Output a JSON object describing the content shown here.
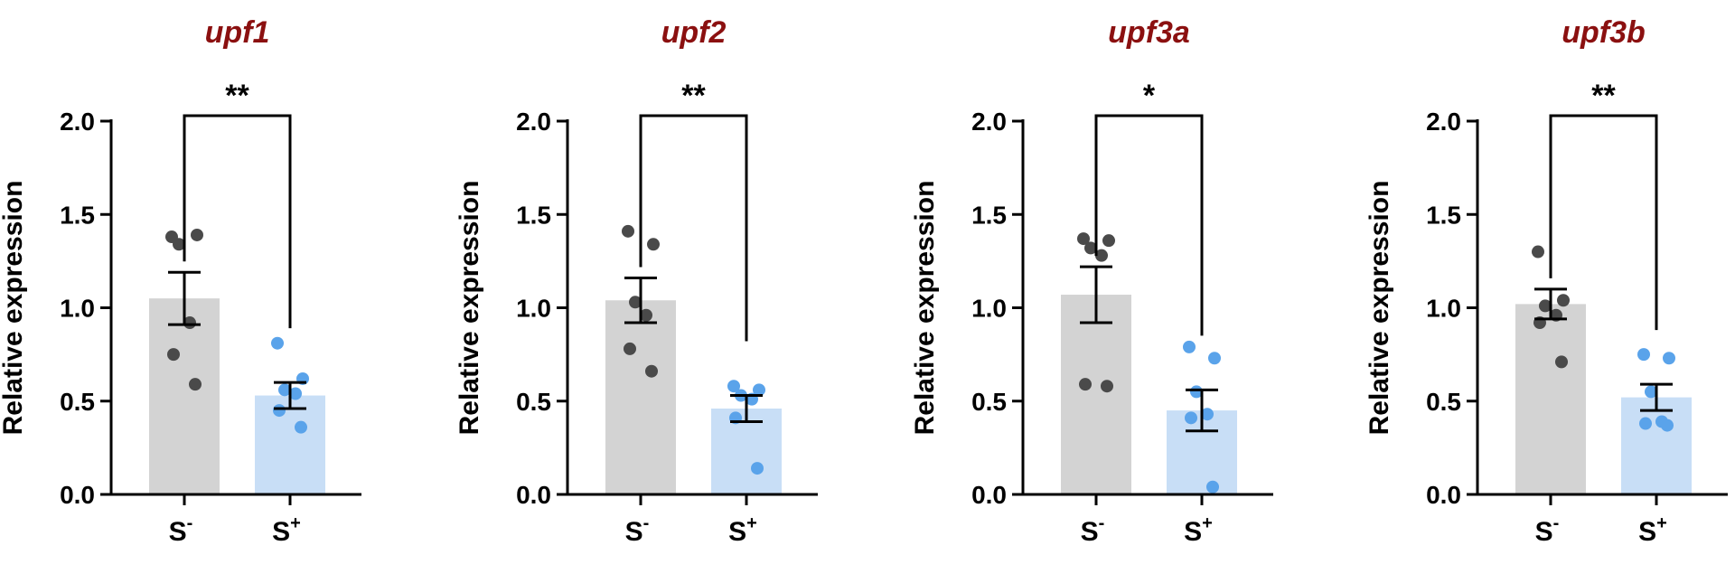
{
  "colors": {
    "title": "#8b1010",
    "bar_minus": "#d3d3d3",
    "bar_plus": "#c8def6",
    "dot_minus": "#4a4a4a",
    "dot_plus": "#5aa3ea",
    "axis": "#000000"
  },
  "chart_data": [
    {
      "type": "bar",
      "title": "upf1",
      "ylabel": "Relative expression",
      "ylim": [
        0,
        2.0
      ],
      "yticks": [
        "0.0",
        "0.5",
        "1.0",
        "1.5",
        "2.0"
      ],
      "categories": [
        {
          "base": "S",
          "sup": "-"
        },
        {
          "base": "S",
          "sup": "+"
        }
      ],
      "values": [
        1.05,
        0.53
      ],
      "errors": [
        0.14,
        0.07
      ],
      "points": [
        [
          1.38,
          1.39,
          1.34,
          0.92,
          0.75,
          0.59
        ],
        [
          0.81,
          0.62,
          0.56,
          0.54,
          0.45,
          0.36
        ]
      ],
      "significance": "**"
    },
    {
      "type": "bar",
      "title": "upf2",
      "ylabel": "Relative expression",
      "ylim": [
        0,
        2.0
      ],
      "yticks": [
        "0.0",
        "0.5",
        "1.0",
        "1.5",
        "2.0"
      ],
      "categories": [
        {
          "base": "S",
          "sup": "-"
        },
        {
          "base": "S",
          "sup": "+"
        }
      ],
      "values": [
        1.04,
        0.46
      ],
      "errors": [
        0.12,
        0.07
      ],
      "points": [
        [
          1.41,
          1.34,
          1.03,
          0.96,
          0.78,
          0.66
        ],
        [
          0.58,
          0.56,
          0.53,
          0.51,
          0.41,
          0.14
        ]
      ],
      "significance": "**"
    },
    {
      "type": "bar",
      "title": "upf3a",
      "ylabel": "Relative expression",
      "ylim": [
        0,
        2.0
      ],
      "yticks": [
        "0.0",
        "0.5",
        "1.0",
        "1.5",
        "2.0"
      ],
      "categories": [
        {
          "base": "S",
          "sup": "-"
        },
        {
          "base": "S",
          "sup": "+"
        }
      ],
      "values": [
        1.07,
        0.45
      ],
      "errors": [
        0.15,
        0.11
      ],
      "points": [
        [
          1.37,
          1.36,
          1.32,
          1.28,
          0.59,
          0.58
        ],
        [
          0.79,
          0.73,
          0.55,
          0.43,
          0.41,
          0.04
        ]
      ],
      "significance": "*"
    },
    {
      "type": "bar",
      "title": "upf3b",
      "ylabel": "Relative expression",
      "ylim": [
        0,
        2.0
      ],
      "yticks": [
        "0.0",
        "0.5",
        "1.0",
        "1.5",
        "2.0"
      ],
      "categories": [
        {
          "base": "S",
          "sup": "-"
        },
        {
          "base": "S",
          "sup": "+"
        }
      ],
      "values": [
        1.02,
        0.52
      ],
      "errors": [
        0.08,
        0.07
      ],
      "points": [
        [
          1.3,
          1.04,
          1.01,
          0.96,
          0.92,
          0.71
        ],
        [
          0.75,
          0.73,
          0.55,
          0.39,
          0.38,
          0.37
        ]
      ],
      "significance": "**"
    }
  ]
}
